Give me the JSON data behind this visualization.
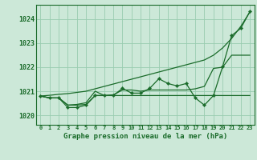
{
  "title": "Graphe pression niveau de la mer (hPa)",
  "background_color": "#cce8d8",
  "grid_color": "#99ccb0",
  "line_color": "#1a6b2a",
  "ylim": [
    1019.6,
    1024.6
  ],
  "yticks": [
    1020,
    1021,
    1022,
    1023,
    1024
  ],
  "x_labels": [
    "0",
    "1",
    "2",
    "3",
    "4",
    "5",
    "6",
    "7",
    "8",
    "9",
    "10",
    "11",
    "12",
    "13",
    "14",
    "15",
    "16",
    "17",
    "18",
    "19",
    "20",
    "21",
    "22",
    "23"
  ],
  "series": {
    "smooth_diagonal": [
      1020.8,
      1020.83,
      1020.87,
      1020.9,
      1020.95,
      1021.0,
      1021.1,
      1021.2,
      1021.3,
      1021.4,
      1021.5,
      1021.6,
      1021.7,
      1021.8,
      1021.9,
      1022.0,
      1022.1,
      1022.2,
      1022.3,
      1022.5,
      1022.8,
      1023.2,
      1023.7,
      1024.3
    ],
    "line_flat": [
      1020.8,
      1020.72,
      1020.72,
      1020.42,
      1020.42,
      1020.45,
      1020.82,
      1020.82,
      1020.82,
      1020.82,
      1020.82,
      1020.82,
      1020.82,
      1020.82,
      1020.82,
      1020.82,
      1020.82,
      1020.82,
      1020.82,
      1020.82,
      1020.82,
      1020.82,
      1020.82,
      1020.82
    ],
    "line_mid": [
      1020.8,
      1020.72,
      1020.72,
      1020.42,
      1020.45,
      1020.52,
      1021.0,
      1020.82,
      1020.85,
      1021.05,
      1021.05,
      1021.0,
      1021.05,
      1021.05,
      1021.05,
      1021.05,
      1021.05,
      1021.1,
      1021.2,
      1021.95,
      1022.0,
      1022.5,
      1022.5,
      1022.5
    ],
    "line_wiggly": [
      1020.8,
      1020.72,
      1020.72,
      1020.32,
      1020.32,
      1020.42,
      1020.82,
      1020.82,
      1020.82,
      1021.12,
      1020.92,
      1020.92,
      1021.12,
      1021.52,
      1021.32,
      1021.22,
      1021.32,
      1020.72,
      1020.42,
      1020.82,
      1022.02,
      1023.32,
      1023.62,
      1024.32
    ]
  }
}
